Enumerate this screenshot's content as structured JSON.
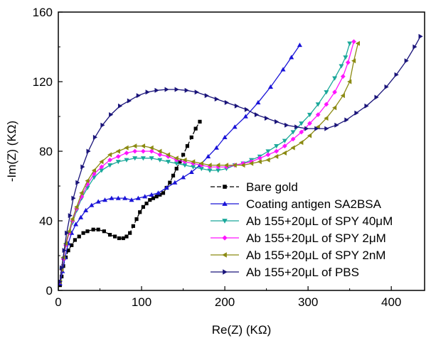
{
  "chart_data": {
    "type": "scatter",
    "title": "",
    "xlabel": "Re(Z) (KΩ)",
    "ylabel": "-Im(Z) (KΩ)",
    "xlim": [
      0,
      440
    ],
    "ylim": [
      0,
      160
    ],
    "x_ticks": [
      0,
      100,
      200,
      300,
      400
    ],
    "y_ticks": [
      0,
      40,
      80,
      120,
      160
    ],
    "grid": false,
    "legend_position": "bottom-right",
    "series": [
      {
        "name": "Bare gold",
        "color": "#000000",
        "marker": "square",
        "line": "dashed",
        "points": [
          [
            2,
            3
          ],
          [
            4,
            8
          ],
          [
            6,
            14
          ],
          [
            9,
            19
          ],
          [
            12,
            23
          ],
          [
            16,
            26
          ],
          [
            20,
            29
          ],
          [
            25,
            31
          ],
          [
            30,
            33
          ],
          [
            35,
            34
          ],
          [
            42,
            35
          ],
          [
            48,
            35
          ],
          [
            55,
            34
          ],
          [
            62,
            32
          ],
          [
            68,
            31
          ],
          [
            73,
            30
          ],
          [
            78,
            30
          ],
          [
            82,
            31
          ],
          [
            86,
            33
          ],
          [
            90,
            37
          ],
          [
            94,
            41
          ],
          [
            98,
            45
          ],
          [
            102,
            48
          ],
          [
            106,
            50
          ],
          [
            110,
            52
          ],
          [
            114,
            53
          ],
          [
            118,
            54
          ],
          [
            122,
            55
          ],
          [
            126,
            56
          ],
          [
            130,
            59
          ],
          [
            134,
            62
          ],
          [
            138,
            66
          ],
          [
            142,
            70
          ],
          [
            146,
            74
          ],
          [
            150,
            78
          ],
          [
            155,
            83
          ],
          [
            160,
            88
          ],
          [
            165,
            93
          ],
          [
            170,
            97
          ]
        ]
      },
      {
        "name": "Coating antigen SA2BSA",
        "color": "#1a14d8",
        "marker": "triangle-up",
        "line": "solid",
        "points": [
          [
            2,
            4
          ],
          [
            5,
            11
          ],
          [
            8,
            19
          ],
          [
            12,
            27
          ],
          [
            16,
            33
          ],
          [
            21,
            38
          ],
          [
            27,
            42
          ],
          [
            33,
            46
          ],
          [
            40,
            49
          ],
          [
            48,
            51
          ],
          [
            56,
            52
          ],
          [
            64,
            53
          ],
          [
            72,
            53
          ],
          [
            80,
            53
          ],
          [
            88,
            52
          ],
          [
            96,
            53
          ],
          [
            104,
            54
          ],
          [
            112,
            55
          ],
          [
            120,
            56
          ],
          [
            130,
            59
          ],
          [
            140,
            62
          ],
          [
            150,
            65
          ],
          [
            160,
            68
          ],
          [
            170,
            72
          ],
          [
            180,
            77
          ],
          [
            190,
            82
          ],
          [
            200,
            88
          ],
          [
            212,
            94
          ],
          [
            225,
            100
          ],
          [
            240,
            108
          ],
          [
            255,
            117
          ],
          [
            270,
            127
          ],
          [
            280,
            134
          ],
          [
            290,
            141
          ]
        ]
      },
      {
        "name": "Ab 155+20μL of SPY 40μM",
        "color": "#1aa89a",
        "marker": "triangle-down",
        "line": "solid",
        "points": [
          [
            2,
            5
          ],
          [
            4,
            12
          ],
          [
            6,
            18
          ],
          [
            9,
            26
          ],
          [
            13,
            33
          ],
          [
            17,
            39
          ],
          [
            22,
            46
          ],
          [
            28,
            53
          ],
          [
            35,
            59
          ],
          [
            43,
            65
          ],
          [
            52,
            69
          ],
          [
            62,
            72
          ],
          [
            72,
            74
          ],
          [
            82,
            75
          ],
          [
            92,
            76
          ],
          [
            102,
            76
          ],
          [
            112,
            76
          ],
          [
            122,
            75
          ],
          [
            132,
            74
          ],
          [
            142,
            73
          ],
          [
            152,
            72
          ],
          [
            162,
            71
          ],
          [
            172,
            70
          ],
          [
            182,
            69
          ],
          [
            192,
            69
          ],
          [
            202,
            70
          ],
          [
            212,
            72
          ],
          [
            222,
            73
          ],
          [
            232,
            75
          ],
          [
            242,
            77
          ],
          [
            252,
            80
          ],
          [
            262,
            83
          ],
          [
            272,
            86
          ],
          [
            282,
            91
          ],
          [
            292,
            96
          ],
          [
            302,
            101
          ],
          [
            312,
            107
          ],
          [
            322,
            114
          ],
          [
            332,
            122
          ],
          [
            340,
            129
          ],
          [
            345,
            134
          ],
          [
            350,
            142
          ]
        ]
      },
      {
        "name": "Ab 155+20μL of SPY 2μM",
        "color": "#ff14ff",
        "marker": "diamond",
        "line": "solid",
        "points": [
          [
            2,
            5
          ],
          [
            4,
            12
          ],
          [
            6,
            18
          ],
          [
            9,
            26
          ],
          [
            13,
            33
          ],
          [
            17,
            40
          ],
          [
            22,
            47
          ],
          [
            28,
            54
          ],
          [
            35,
            61
          ],
          [
            43,
            67
          ],
          [
            52,
            71
          ],
          [
            62,
            75
          ],
          [
            72,
            77
          ],
          [
            82,
            79
          ],
          [
            92,
            80
          ],
          [
            102,
            80
          ],
          [
            112,
            80
          ],
          [
            122,
            78
          ],
          [
            132,
            77
          ],
          [
            142,
            75
          ],
          [
            152,
            74
          ],
          [
            162,
            73
          ],
          [
            172,
            72
          ],
          [
            182,
            71
          ],
          [
            192,
            71
          ],
          [
            202,
            71
          ],
          [
            212,
            72
          ],
          [
            222,
            73
          ],
          [
            232,
            74
          ],
          [
            242,
            76
          ],
          [
            252,
            78
          ],
          [
            262,
            80
          ],
          [
            272,
            83
          ],
          [
            282,
            87
          ],
          [
            292,
            91
          ],
          [
            302,
            96
          ],
          [
            312,
            101
          ],
          [
            322,
            107
          ],
          [
            332,
            114
          ],
          [
            342,
            123
          ],
          [
            348,
            131
          ],
          [
            355,
            143
          ]
        ]
      },
      {
        "name": "Ab 155+20μL of SPY 2nM",
        "color": "#8b8a12",
        "marker": "triangle-left",
        "line": "solid",
        "points": [
          [
            2,
            5
          ],
          [
            4,
            12
          ],
          [
            6,
            19
          ],
          [
            9,
            27
          ],
          [
            13,
            34
          ],
          [
            17,
            41
          ],
          [
            22,
            48
          ],
          [
            28,
            56
          ],
          [
            35,
            63
          ],
          [
            43,
            69
          ],
          [
            52,
            74
          ],
          [
            62,
            78
          ],
          [
            72,
            80
          ],
          [
            82,
            82
          ],
          [
            92,
            83
          ],
          [
            102,
            83
          ],
          [
            112,
            82
          ],
          [
            122,
            80
          ],
          [
            132,
            78
          ],
          [
            142,
            76
          ],
          [
            152,
            75
          ],
          [
            162,
            74
          ],
          [
            172,
            73
          ],
          [
            182,
            72
          ],
          [
            192,
            72
          ],
          [
            202,
            72
          ],
          [
            212,
            72
          ],
          [
            222,
            72
          ],
          [
            232,
            73
          ],
          [
            242,
            74
          ],
          [
            252,
            75
          ],
          [
            262,
            77
          ],
          [
            272,
            79
          ],
          [
            282,
            82
          ],
          [
            292,
            85
          ],
          [
            302,
            89
          ],
          [
            312,
            94
          ],
          [
            322,
            99
          ],
          [
            332,
            105
          ],
          [
            342,
            112
          ],
          [
            350,
            120
          ],
          [
            355,
            132
          ],
          [
            360,
            142
          ]
        ]
      },
      {
        "name": "Ab 155+20μL of PBS",
        "color": "#1a147a",
        "marker": "triangle-right",
        "line": "solid",
        "points": [
          [
            2,
            5
          ],
          [
            4,
            13
          ],
          [
            7,
            23
          ],
          [
            10,
            33
          ],
          [
            14,
            43
          ],
          [
            18,
            53
          ],
          [
            23,
            62
          ],
          [
            29,
            71
          ],
          [
            36,
            80
          ],
          [
            44,
            88
          ],
          [
            53,
            95
          ],
          [
            63,
            101
          ],
          [
            74,
            106
          ],
          [
            85,
            109
          ],
          [
            96,
            112
          ],
          [
            107,
            114
          ],
          [
            118,
            115
          ],
          [
            130,
            115.5
          ],
          [
            142,
            115.5
          ],
          [
            154,
            115
          ],
          [
            166,
            114
          ],
          [
            178,
            112
          ],
          [
            190,
            110
          ],
          [
            202,
            108
          ],
          [
            214,
            106
          ],
          [
            226,
            104
          ],
          [
            238,
            101
          ],
          [
            250,
            99
          ],
          [
            262,
            97
          ],
          [
            274,
            95
          ],
          [
            286,
            94
          ],
          [
            298,
            93
          ],
          [
            310,
            93
          ],
          [
            322,
            93
          ],
          [
            334,
            95
          ],
          [
            346,
            98
          ],
          [
            358,
            102
          ],
          [
            370,
            106
          ],
          [
            382,
            111
          ],
          [
            394,
            117
          ],
          [
            406,
            124
          ],
          [
            418,
            132
          ],
          [
            428,
            140
          ],
          [
            435,
            146
          ]
        ]
      }
    ]
  }
}
